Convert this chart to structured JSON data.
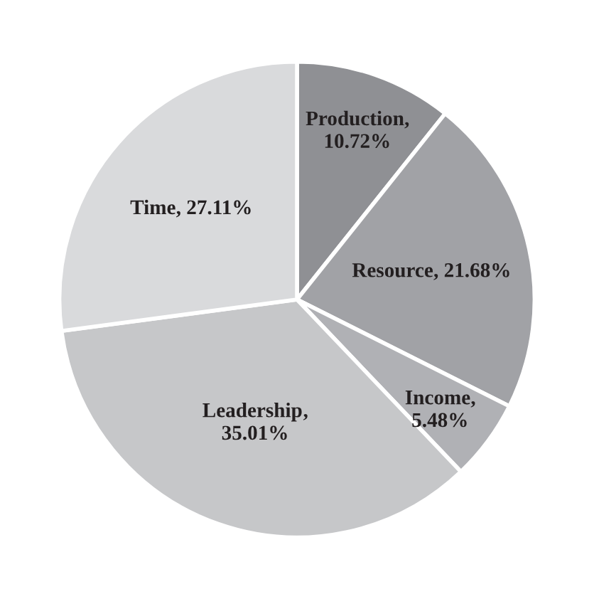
{
  "chart_data": {
    "type": "pie",
    "categories": [
      "Production",
      "Resource",
      "Income",
      "Leadership",
      "Time"
    ],
    "values": [
      10.72,
      21.68,
      5.48,
      35.01,
      27.11
    ],
    "value_labels": [
      ",\n10.72%",
      ", 21.68%",
      ",\n5.48%",
      ",\n35.01%",
      ", 27.11%"
    ],
    "colors": [
      "#8f9094",
      "#a1a2a6",
      "#b0b1b5",
      "#c6c7c9",
      "#d9dadc"
    ]
  }
}
